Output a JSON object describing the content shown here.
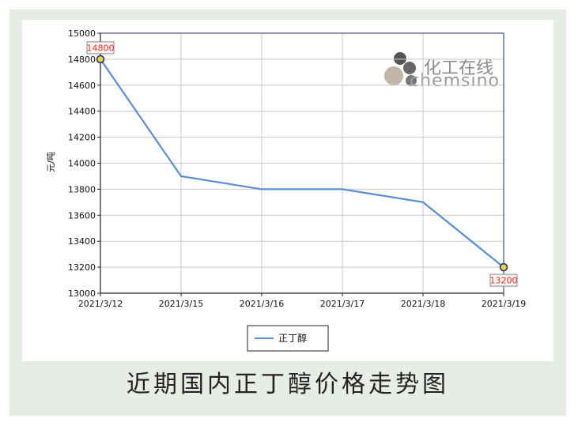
{
  "chart_data": {
    "type": "line",
    "title": "近期国内正丁醇价格走势图",
    "ylabel": "元/吨",
    "xlabel": "",
    "categories": [
      "2021/3/12",
      "2021/3/15",
      "2021/3/16",
      "2021/3/17",
      "2021/3/18",
      "2021/3/19"
    ],
    "series": [
      {
        "name": "正丁醇",
        "values": [
          14800,
          13900,
          13800,
          13800,
          13700,
          13200
        ]
      }
    ],
    "ylim": [
      13000,
      15000
    ],
    "yticks": [
      13000,
      13200,
      13400,
      13600,
      13800,
      14000,
      14200,
      14400,
      14600,
      14800,
      15000
    ],
    "point_labels": [
      {
        "index": 0,
        "text": "14800"
      },
      {
        "index": 5,
        "text": "13200"
      }
    ],
    "grid": true,
    "legend": "bottom-center",
    "line_color": "#5b8fd4",
    "label_color": "#ff2a1a"
  },
  "watermark": {
    "cn": "化工在线",
    "en": "chemsino"
  }
}
